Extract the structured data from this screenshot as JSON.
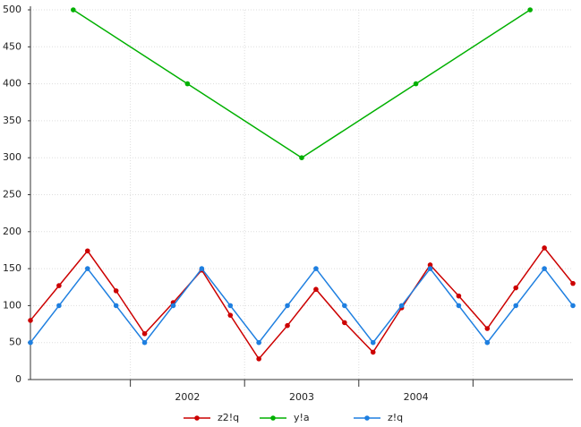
{
  "chart_data": {
    "type": "line",
    "xlim": [
      2001.125,
      2005.875
    ],
    "xticks": [
      {
        "value": 2002.5,
        "label": "2002"
      },
      {
        "value": 2003.5,
        "label": "2003"
      },
      {
        "value": 2004.5,
        "label": "2004"
      }
    ],
    "xgrid": [
      2002,
      2003,
      2004,
      2005
    ],
    "ylim": [
      0,
      500
    ],
    "yticks": [
      0,
      50,
      100,
      150,
      200,
      250,
      300,
      350,
      400,
      450,
      500
    ],
    "grid": true,
    "legend": "bottom",
    "series": [
      {
        "name": "z2!q",
        "color": "#cc0000",
        "x": [
          2001.125,
          2001.375,
          2001.625,
          2001.875,
          2002.125,
          2002.375,
          2002.625,
          2002.875,
          2003.125,
          2003.375,
          2003.625,
          2003.875,
          2004.125,
          2004.375,
          2004.625,
          2004.875,
          2005.125,
          2005.375,
          2005.625,
          2005.875
        ],
        "values": [
          80,
          127,
          174,
          120,
          62,
          104,
          148,
          87,
          28,
          73,
          122,
          77,
          37,
          97,
          155,
          113,
          69,
          124,
          178,
          130
        ]
      },
      {
        "name": "y!a",
        "color": "#00b000",
        "x": [
          2001.5,
          2002.5,
          2003.5,
          2004.5,
          2005.5
        ],
        "values": [
          500,
          400,
          300,
          400,
          500
        ]
      },
      {
        "name": "z!q",
        "color": "#1e7fe0",
        "x": [
          2001.125,
          2001.375,
          2001.625,
          2001.875,
          2002.125,
          2002.375,
          2002.625,
          2002.875,
          2003.125,
          2003.375,
          2003.625,
          2003.875,
          2004.125,
          2004.375,
          2004.625,
          2004.875,
          2005.125,
          2005.375,
          2005.625,
          2005.875
        ],
        "values": [
          50,
          100,
          150,
          100,
          50,
          100,
          150,
          100,
          50,
          100,
          150,
          100,
          50,
          100,
          150,
          100,
          50,
          100,
          150,
          100
        ]
      }
    ]
  }
}
